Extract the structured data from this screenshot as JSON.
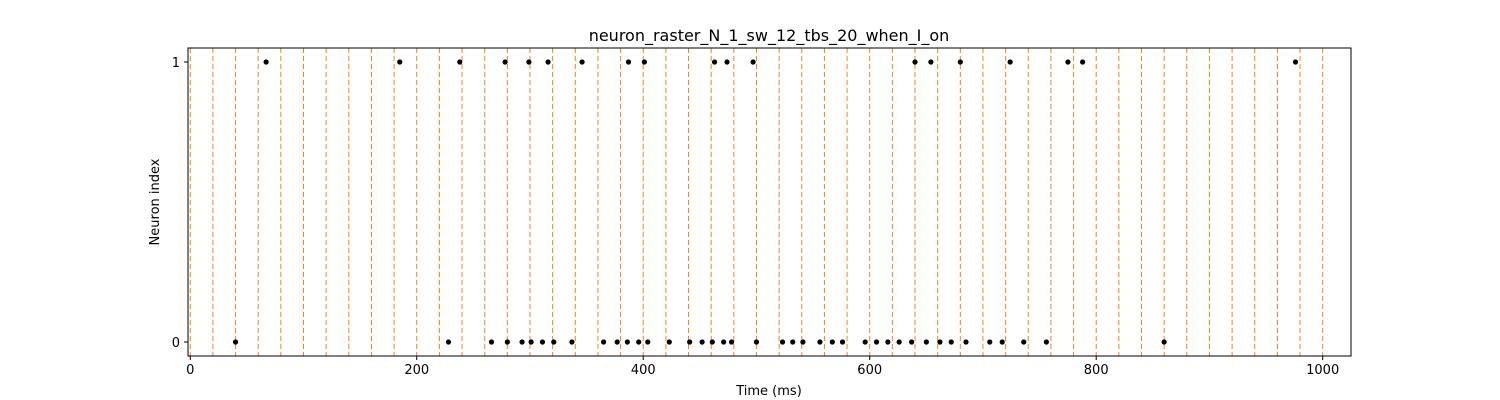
{
  "chart_data": {
    "type": "scatter",
    "title": "neuron_raster_N_1_sw_12_tbs_20_when_I_on",
    "xlabel": "Time (ms)",
    "ylabel": "Neuron index",
    "xlim": [
      -2,
      1025
    ],
    "ylim": [
      -0.05,
      1.05
    ],
    "xticks": [
      0,
      200,
      400,
      600,
      800,
      1000
    ],
    "yticks": [
      0,
      1
    ],
    "marker_color": "#000000",
    "reference_lines": {
      "orientation": "vertical",
      "style": "dashed",
      "color": "#ff7f0e",
      "x": [
        0,
        20,
        40,
        60,
        80,
        100,
        120,
        140,
        160,
        180,
        200,
        220,
        240,
        260,
        280,
        300,
        320,
        340,
        360,
        380,
        400,
        420,
        440,
        460,
        480,
        500,
        520,
        540,
        560,
        580,
        600,
        620,
        640,
        660,
        680,
        700,
        720,
        740,
        760,
        780,
        800,
        820,
        840,
        860,
        880,
        900,
        920,
        940,
        960,
        980,
        1000
      ]
    },
    "series": [
      {
        "neuron": 0,
        "x": [
          40,
          228,
          266,
          280,
          293,
          301,
          311,
          321,
          337,
          365,
          377,
          386,
          396,
          404,
          423,
          441,
          452,
          461,
          471,
          478,
          500,
          523,
          532,
          541,
          556,
          567,
          576,
          596,
          606,
          616,
          626,
          637,
          650,
          662,
          672,
          685,
          706,
          717,
          736,
          756,
          860
        ]
      },
      {
        "neuron": 1,
        "x": [
          67,
          185,
          238,
          278,
          299,
          316,
          346,
          387,
          401,
          463,
          474,
          497,
          640,
          654,
          680,
          724,
          775,
          788,
          976
        ]
      }
    ]
  }
}
